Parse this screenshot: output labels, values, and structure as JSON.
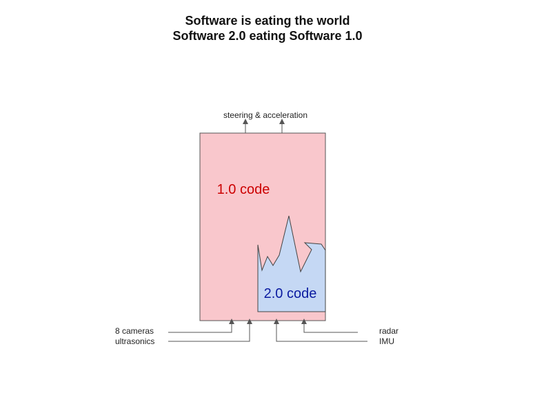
{
  "title": {
    "line1": "Software is eating the world",
    "line2": "Software 2.0 eating Software 1.0"
  },
  "diagram": {
    "outputs_label": "steering & acceleration",
    "code_1_label": "1.0 code",
    "code_2_label": "2.0 code",
    "inputs_left": [
      "8 cameras",
      "ultrasonics"
    ],
    "inputs_right": [
      "radar",
      "IMU"
    ],
    "colors": {
      "code_1_fill": "#f9c7cc",
      "code_1_text": "#cc0000",
      "code_2_fill": "#c5d8f4",
      "code_2_text": "#0a1aa0",
      "lines": "#555555"
    }
  }
}
